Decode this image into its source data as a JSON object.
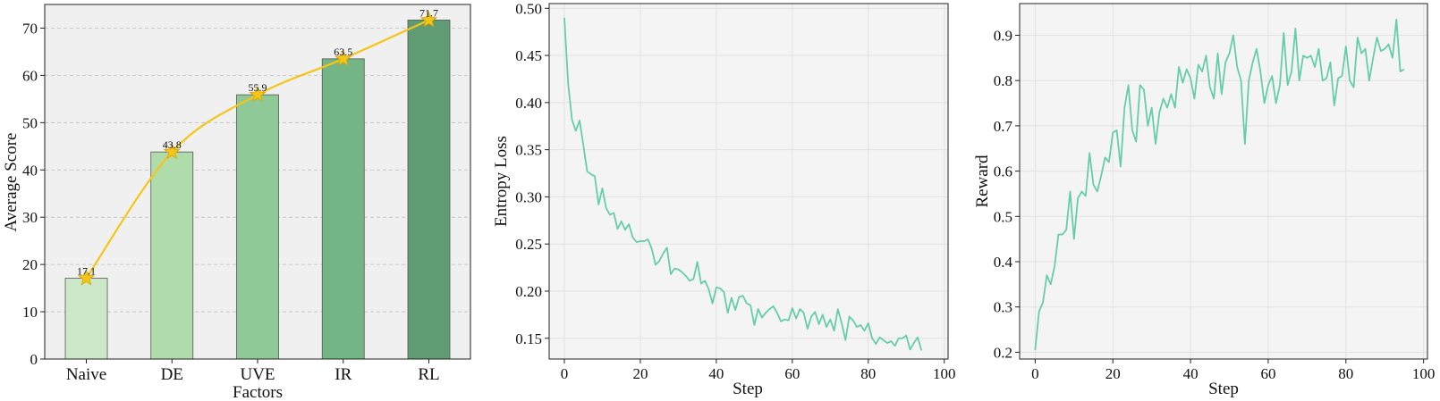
{
  "chart_data": [
    {
      "type": "bar",
      "xlabel": "Factors",
      "ylabel": "Average Score",
      "categories": [
        "Naive",
        "DE",
        "UVE",
        "IR",
        "RL"
      ],
      "values": [
        17.1,
        43.8,
        55.9,
        63.5,
        71.7
      ],
      "data_labels": [
        "17.1",
        "43.8",
        "55.9",
        "63.5",
        "71.7"
      ],
      "ylim": [
        0,
        75
      ],
      "yticks": [
        0,
        10,
        20,
        30,
        40,
        50,
        60,
        70
      ],
      "grid": "y dashed",
      "bar_colors": [
        "#cde8c8",
        "#b0dcab",
        "#8ec997",
        "#73b585",
        "#5f9b73"
      ],
      "overlay_line": {
        "marker": "star",
        "color": "#f5c518",
        "values": [
          17.1,
          43.8,
          55.9,
          63.5,
          71.7
        ]
      }
    },
    {
      "type": "line",
      "xlabel": "Step",
      "ylabel": "Entropy Loss",
      "xlim": [
        -4,
        101
      ],
      "ylim": [
        0.128,
        0.505
      ],
      "xticks": [
        0,
        20,
        40,
        60,
        80,
        100
      ],
      "yticks": [
        0.15,
        0.2,
        0.25,
        0.3,
        0.35,
        0.4,
        0.45,
        0.5
      ],
      "ytick_labels": [
        "0.15",
        "0.20",
        "0.25",
        "0.30",
        "0.35",
        "0.40",
        "0.45",
        "0.50"
      ],
      "grid": true,
      "color": "#66cdaa",
      "x_start": 0,
      "y": [
        0.49,
        0.42,
        0.382,
        0.37,
        0.381,
        0.355,
        0.327,
        0.324,
        0.322,
        0.292,
        0.309,
        0.288,
        0.281,
        0.283,
        0.266,
        0.274,
        0.265,
        0.271,
        0.257,
        0.252,
        0.253,
        0.253,
        0.255,
        0.245,
        0.228,
        0.232,
        0.24,
        0.246,
        0.218,
        0.224,
        0.223,
        0.22,
        0.216,
        0.211,
        0.213,
        0.231,
        0.208,
        0.211,
        0.202,
        0.187,
        0.204,
        0.203,
        0.199,
        0.177,
        0.193,
        0.18,
        0.194,
        0.195,
        0.187,
        0.185,
        0.164,
        0.181,
        0.172,
        0.177,
        0.181,
        0.184,
        0.177,
        0.168,
        0.17,
        0.169,
        0.182,
        0.171,
        0.181,
        0.177,
        0.16,
        0.173,
        0.178,
        0.165,
        0.175,
        0.162,
        0.17,
        0.158,
        0.181,
        0.166,
        0.148,
        0.173,
        0.169,
        0.162,
        0.164,
        0.158,
        0.166,
        0.15,
        0.144,
        0.151,
        0.148,
        0.145,
        0.147,
        0.142,
        0.15,
        0.15,
        0.153,
        0.138,
        0.145,
        0.151,
        0.137
      ]
    },
    {
      "type": "line",
      "xlabel": "Step",
      "ylabel": "Reward",
      "xlim": [
        -4,
        101
      ],
      "ylim": [
        0.185,
        0.97
      ],
      "xticks": [
        0,
        20,
        40,
        60,
        80,
        100
      ],
      "yticks": [
        0.2,
        0.3,
        0.4,
        0.5,
        0.6,
        0.7,
        0.8,
        0.9
      ],
      "ytick_labels": [
        "0.2",
        "0.3",
        "0.4",
        "0.5",
        "0.6",
        "0.7",
        "0.8",
        "0.9"
      ],
      "grid": true,
      "color": "#66cdaa",
      "x_start": 0,
      "y": [
        0.205,
        0.29,
        0.31,
        0.37,
        0.35,
        0.39,
        0.46,
        0.46,
        0.47,
        0.555,
        0.45,
        0.54,
        0.555,
        0.545,
        0.64,
        0.57,
        0.555,
        0.59,
        0.63,
        0.62,
        0.685,
        0.69,
        0.61,
        0.74,
        0.79,
        0.69,
        0.665,
        0.79,
        0.78,
        0.7,
        0.74,
        0.66,
        0.73,
        0.76,
        0.74,
        0.77,
        0.74,
        0.83,
        0.795,
        0.825,
        0.805,
        0.76,
        0.835,
        0.82,
        0.855,
        0.785,
        0.76,
        0.86,
        0.77,
        0.84,
        0.86,
        0.9,
        0.83,
        0.8,
        0.66,
        0.8,
        0.84,
        0.87,
        0.82,
        0.75,
        0.79,
        0.81,
        0.75,
        0.79,
        0.905,
        0.79,
        0.82,
        0.915,
        0.8,
        0.855,
        0.85,
        0.855,
        0.83,
        0.87,
        0.8,
        0.805,
        0.84,
        0.745,
        0.805,
        0.81,
        0.875,
        0.8,
        0.785,
        0.895,
        0.86,
        0.87,
        0.8,
        0.85,
        0.895,
        0.865,
        0.87,
        0.88,
        0.85,
        0.935,
        0.82,
        0.825
      ]
    }
  ]
}
